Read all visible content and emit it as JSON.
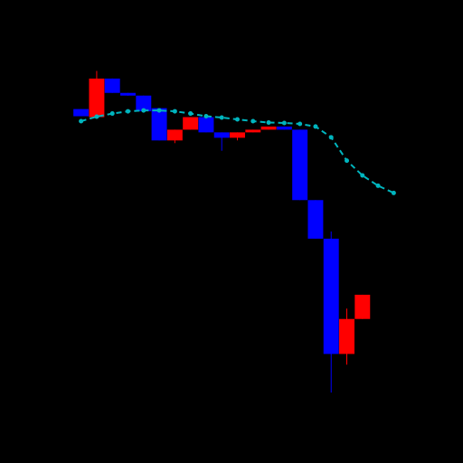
{
  "chart_data": {
    "type": "candlestick",
    "title": "",
    "xlabel": "",
    "ylabel": "",
    "grid": false,
    "legend": "none",
    "x": [
      1,
      2,
      3,
      4,
      5,
      6,
      7,
      8,
      9,
      10,
      11,
      12,
      13,
      14,
      15,
      16,
      17,
      18,
      19,
      20,
      21
    ],
    "xlim": [
      0.5,
      21.5
    ],
    "ylim": [
      0,
      100
    ],
    "candles": [
      {
        "x": 1,
        "open": 77.3,
        "close": 75.7,
        "high": 77.3,
        "low": 75.7
      },
      {
        "x": 2,
        "open": 75.5,
        "close": 84.1,
        "high": 85.8,
        "low": 75.5
      },
      {
        "x": 3,
        "open": 84.1,
        "close": 80.9,
        "high": 84.1,
        "low": 80.9
      },
      {
        "x": 4,
        "open": 80.9,
        "close": 80.3,
        "high": 80.9,
        "low": 80.3
      },
      {
        "x": 5,
        "open": 80.3,
        "close": 76.8,
        "high": 80.3,
        "low": 76.8
      },
      {
        "x": 6,
        "open": 77.5,
        "close": 70.3,
        "high": 77.5,
        "low": 70.3
      },
      {
        "x": 7,
        "open": 70.3,
        "close": 72.7,
        "high": 72.7,
        "low": 69.7
      },
      {
        "x": 8,
        "open": 72.7,
        "close": 75.5,
        "high": 75.5,
        "low": 72.7
      },
      {
        "x": 9,
        "open": 75.5,
        "close": 72.1,
        "high": 75.5,
        "low": 72.1
      },
      {
        "x": 10,
        "open": 72.1,
        "close": 70.9,
        "high": 72.1,
        "low": 68.0
      },
      {
        "x": 11,
        "open": 70.9,
        "close": 72.1,
        "high": 72.1,
        "low": 70.3
      },
      {
        "x": 12,
        "open": 72.1,
        "close": 72.7,
        "high": 72.7,
        "low": 72.1
      },
      {
        "x": 13,
        "open": 72.7,
        "close": 73.4,
        "high": 73.4,
        "low": 72.7
      },
      {
        "x": 14,
        "open": 73.4,
        "close": 72.7,
        "high": 73.4,
        "low": 72.7
      },
      {
        "x": 15,
        "open": 72.7,
        "close": 57.0,
        "high": 72.7,
        "low": 57.0
      },
      {
        "x": 16,
        "open": 57.0,
        "close": 48.4,
        "high": 57.0,
        "low": 48.4
      },
      {
        "x": 17,
        "open": 48.4,
        "close": 22.7,
        "high": 50.0,
        "low": 14.1
      },
      {
        "x": 18,
        "open": 22.7,
        "close": 30.5,
        "high": 32.8,
        "low": 20.3
      },
      {
        "x": 19,
        "open": 30.5,
        "close": 35.9,
        "high": 35.9,
        "low": 30.5
      }
    ],
    "series": [
      {
        "type": "line",
        "x": [
          1,
          2,
          3,
          4,
          5,
          6,
          7,
          8,
          9,
          10,
          11,
          12,
          13,
          14,
          15,
          16,
          17,
          18,
          19,
          20,
          21
        ],
        "values": [
          74.6,
          75.6,
          76.3,
          76.8,
          77.0,
          77.0,
          76.8,
          76.3,
          75.7,
          75.4,
          75.0,
          74.6,
          74.3,
          74.2,
          74.0,
          73.4,
          71.0,
          65.8,
          62.5,
          60.2,
          58.6
        ]
      }
    ],
    "colors": {
      "background": "#000000",
      "up": "#ff0000",
      "down": "#0000ff",
      "line": "#00b5be"
    },
    "line_style": "dashed"
  }
}
